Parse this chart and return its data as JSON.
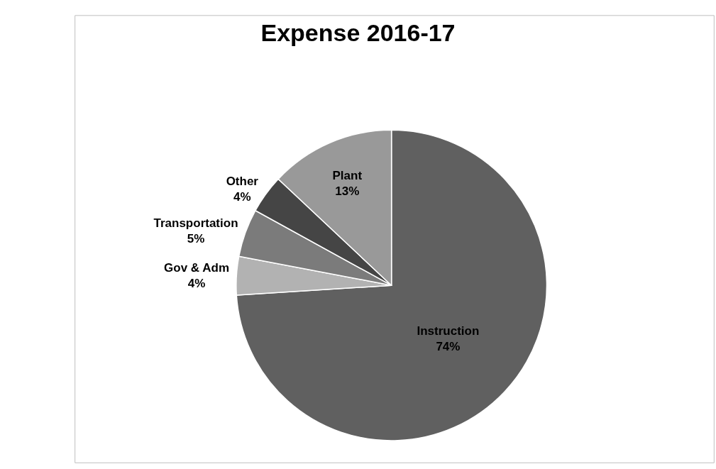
{
  "chart_data": {
    "type": "pie",
    "title": "Expense 2016-17",
    "categories": [
      "Instruction",
      "Gov & Adm",
      "Transportation",
      "Other",
      "Plant"
    ],
    "values": [
      74,
      4,
      5,
      4,
      13
    ],
    "value_labels": [
      "74%",
      "4%",
      "5%",
      "4%",
      "13%"
    ],
    "colors": [
      "#606060",
      "#b2b2b2",
      "#7b7b7b",
      "#454545",
      "#999999"
    ],
    "legend": false
  }
}
